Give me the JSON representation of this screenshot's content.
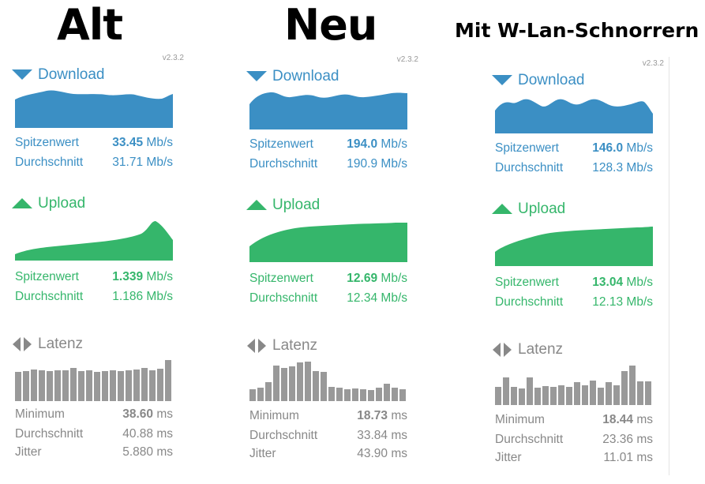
{
  "headings": {
    "alt": "Alt",
    "neu": "Neu",
    "mit": "Mit W-Lan-Schnorrern"
  },
  "panels": [
    {
      "version": "v2.3.2",
      "download": {
        "label": "Download",
        "peak_label": "Spitzenwert",
        "peak_value": "33.45",
        "peak_unit": "Mb/s",
        "avg_label": "Durchschnitt",
        "avg_value": "31.71",
        "avg_unit": "Mb/s"
      },
      "upload": {
        "label": "Upload",
        "peak_label": "Spitzenwert",
        "peak_value": "1.339",
        "peak_unit": "Mb/s",
        "avg_label": "Durchschnitt",
        "avg_value": "1.186",
        "avg_unit": "Mb/s"
      },
      "latency": {
        "label": "Latenz",
        "min_label": "Minimum",
        "min_value": "38.60",
        "min_unit": "ms",
        "avg_label": "Durchschnitt",
        "avg_value": "40.88",
        "avg_unit": "ms",
        "jitter_label": "Jitter",
        "jitter_value": "5.880",
        "jitter_unit": "ms"
      }
    },
    {
      "version": "v2.3.2",
      "download": {
        "label": "Download",
        "peak_label": "Spitzenwert",
        "peak_value": "194.0",
        "peak_unit": "Mb/s",
        "avg_label": "Durchschnitt",
        "avg_value": "190.9",
        "avg_unit": "Mb/s"
      },
      "upload": {
        "label": "Upload",
        "peak_label": "Spitzenwert",
        "peak_value": "12.69",
        "peak_unit": "Mb/s",
        "avg_label": "Durchschnitt",
        "avg_value": "12.34",
        "avg_unit": "Mb/s"
      },
      "latency": {
        "label": "Latenz",
        "min_label": "Minimum",
        "min_value": "18.73",
        "min_unit": "ms",
        "avg_label": "Durchschnitt",
        "avg_value": "33.84",
        "avg_unit": "ms",
        "jitter_label": "Jitter",
        "jitter_value": "43.90",
        "jitter_unit": "ms"
      }
    },
    {
      "version": "v2.3.2",
      "download": {
        "label": "Download",
        "peak_label": "Spitzenwert",
        "peak_value": "146.0",
        "peak_unit": "Mb/s",
        "avg_label": "Durchschnitt",
        "avg_value": "128.3",
        "avg_unit": "Mb/s"
      },
      "upload": {
        "label": "Upload",
        "peak_label": "Spitzenwert",
        "peak_value": "13.04",
        "peak_unit": "Mb/s",
        "avg_label": "Durchschnitt",
        "avg_value": "12.13",
        "avg_unit": "Mb/s"
      },
      "latency": {
        "label": "Latenz",
        "min_label": "Minimum",
        "min_value": "18.44",
        "min_unit": "ms",
        "avg_label": "Durchschnitt",
        "avg_value": "23.36",
        "avg_unit": "ms",
        "jitter_label": "Jitter",
        "jitter_value": "11.01",
        "jitter_unit": "ms"
      }
    }
  ],
  "icons": {
    "download": "triangle-down-icon",
    "upload": "triangle-up-icon",
    "latency": "arrows-left-right-icon"
  },
  "colors": {
    "download": "#3b8fc4",
    "upload": "#35b66b",
    "latency": "#999999",
    "heading": "#000000"
  }
}
